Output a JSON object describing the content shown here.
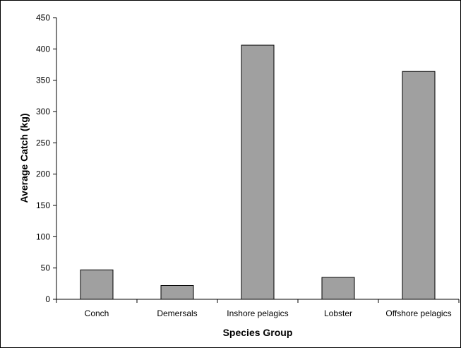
{
  "chart_data": {
    "type": "bar",
    "categories": [
      "Conch",
      "Demersals",
      "Inshore pelagics",
      "Lobster",
      "Offshore pelagics"
    ],
    "values": [
      47,
      22,
      406,
      35,
      364
    ],
    "title": "",
    "xlabel": "Species Group",
    "ylabel": "Average Catch (kg)",
    "ylim": [
      0,
      450
    ],
    "yticks": [
      0,
      50,
      100,
      150,
      200,
      250,
      300,
      350,
      400,
      450
    ],
    "grid": false,
    "legend": "none",
    "bar_color": "#a0a0a0",
    "bar_edge_color": "#000000"
  }
}
